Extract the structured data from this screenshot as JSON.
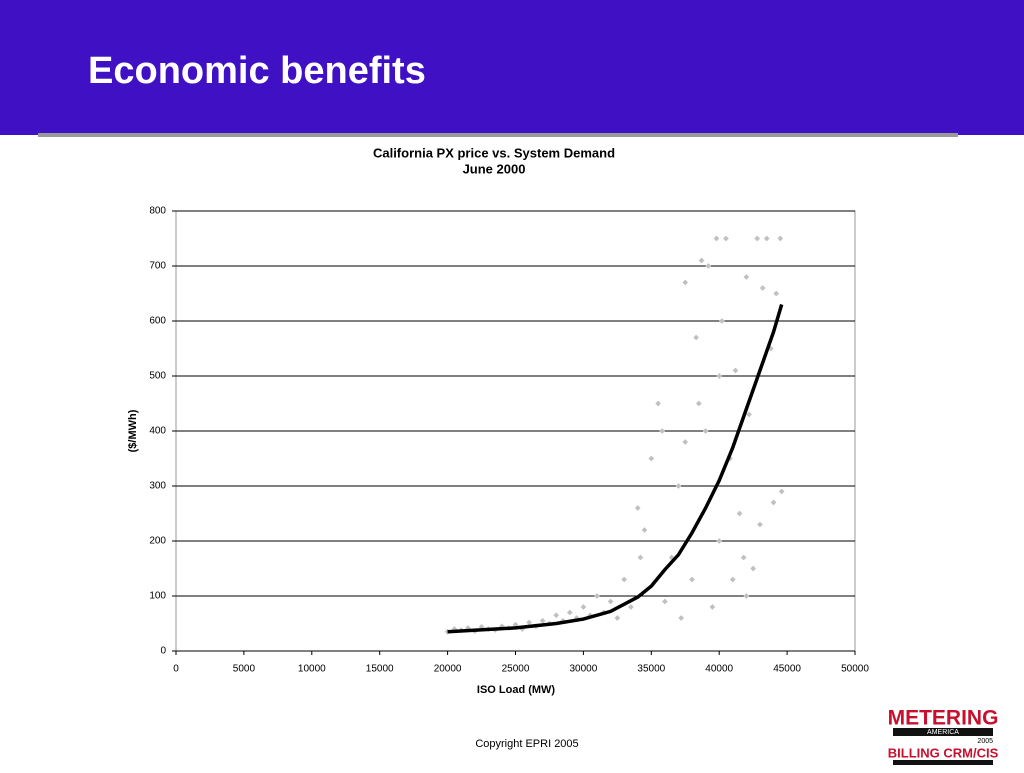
{
  "header": {
    "title": "Economic benefits"
  },
  "chart_data": {
    "type": "scatter",
    "title": "California PX price vs. System Demand",
    "subtitle": "June 2000",
    "x_label": "ISO Load (MW)",
    "y_label": "($/MWh)",
    "xlim": [
      0,
      50000
    ],
    "ylim": [
      0,
      800
    ],
    "xticks": [
      0,
      5000,
      10000,
      15000,
      20000,
      25000,
      30000,
      35000,
      40000,
      45000,
      50000
    ],
    "yticks": [
      0,
      100,
      200,
      300,
      400,
      500,
      600,
      700,
      800
    ],
    "grid": true,
    "series": [
      {
        "mode": "markers",
        "color": "#c0c0c0",
        "x": [
          20000,
          20500,
          21000,
          21500,
          22000,
          22500,
          23000,
          23500,
          24000,
          24500,
          25000,
          25500,
          26000,
          26500,
          27000,
          27500,
          28000,
          28500,
          29000,
          29500,
          30000,
          30500,
          31000,
          31500,
          32000,
          32500,
          33000,
          33500,
          34000,
          34200,
          34500,
          35000,
          35500,
          35800,
          36000,
          36500,
          37000,
          37200,
          37500,
          37500,
          38000,
          38300,
          38500,
          38700,
          39000,
          39200,
          39500,
          39800,
          40000,
          40200,
          40500,
          40800,
          41000,
          41200,
          41500,
          41800,
          42000,
          42200,
          42500,
          42800,
          43000,
          43200,
          43500,
          43800,
          44000,
          44200,
          44500,
          44600,
          40000,
          42000
        ],
        "values": [
          35,
          40,
          38,
          42,
          36,
          44,
          40,
          38,
          45,
          42,
          48,
          40,
          52,
          45,
          55,
          50,
          65,
          55,
          70,
          60,
          80,
          65,
          100,
          70,
          90,
          60,
          130,
          80,
          260,
          170,
          220,
          350,
          450,
          400,
          90,
          170,
          300,
          60,
          380,
          670,
          130,
          570,
          450,
          710,
          400,
          700,
          80,
          750,
          500,
          600,
          750,
          350,
          130,
          510,
          250,
          170,
          680,
          430,
          150,
          750,
          230,
          660,
          750,
          550,
          270,
          650,
          750,
          290,
          200,
          100
        ]
      },
      {
        "mode": "line",
        "color": "#000000",
        "x": [
          20000,
          25000,
          28000,
          30000,
          32000,
          34000,
          35000,
          36000,
          37000,
          38000,
          39000,
          40000,
          41000,
          42000,
          43000,
          44000,
          44600
        ],
        "values": [
          35,
          42,
          50,
          58,
          72,
          98,
          118,
          148,
          175,
          215,
          260,
          310,
          370,
          440,
          510,
          580,
          630
        ]
      }
    ]
  },
  "footer": {
    "copyright": "Copyright EPRI 2005"
  },
  "logo": {
    "line1": "METERING",
    "line2": "AMERICA",
    "line3": "2005",
    "line4": "BILLING CRM/CIS"
  }
}
